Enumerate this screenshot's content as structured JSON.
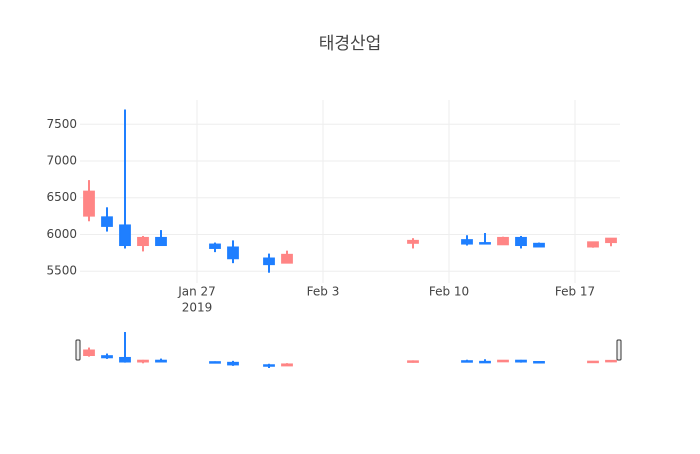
{
  "chart_data": {
    "type": "candlestick",
    "title": "태경산업",
    "x": [
      "2019-01-21",
      "2019-01-22",
      "2019-01-23",
      "2019-01-24",
      "2019-01-25",
      "2019-01-28",
      "2019-01-29",
      "2019-01-31",
      "2019-02-01",
      "2019-02-08",
      "2019-02-11",
      "2019-02-12",
      "2019-02-13",
      "2019-02-14",
      "2019-02-15",
      "2019-02-18",
      "2019-02-19"
    ],
    "open": [
      6250,
      6240,
      6130,
      5850,
      5960,
      5870,
      5830,
      5680,
      5610,
      5880,
      5930,
      5890,
      5860,
      5960,
      5880,
      5830,
      5890
    ],
    "high": [
      6740,
      6370,
      7700,
      5980,
      6060,
      5890,
      5920,
      5740,
      5780,
      5950,
      5990,
      6020,
      5970,
      5980,
      5890,
      5900,
      5950
    ],
    "low": [
      6180,
      6040,
      5810,
      5770,
      5850,
      5760,
      5610,
      5480,
      5610,
      5810,
      5850,
      5870,
      5860,
      5810,
      5830,
      5820,
      5840
    ],
    "close": [
      6590,
      6110,
      5850,
      5960,
      5850,
      5810,
      5670,
      5590,
      5730,
      5920,
      5870,
      5870,
      5960,
      5850,
      5830,
      5900,
      5950
    ],
    "increasing_color": "#ff8585",
    "decreasing_color": "#1f7fff",
    "xlim": [
      "2019-01-20T12:00:00Z",
      "2019-02-19T12:00:00Z"
    ],
    "xticks": [
      {
        "value": "2019-01-27",
        "label": [
          "Jan 27",
          "2019"
        ]
      },
      {
        "value": "2019-02-03",
        "label": [
          "Feb 3"
        ]
      },
      {
        "value": "2019-02-10",
        "label": [
          "Feb 10"
        ]
      },
      {
        "value": "2019-02-17",
        "label": [
          "Feb 17"
        ]
      }
    ],
    "ylim": [
      5340,
      7830
    ],
    "yticks": [
      5500,
      6000,
      6500,
      7000,
      7500
    ],
    "grid": true,
    "rangeslider": true
  }
}
